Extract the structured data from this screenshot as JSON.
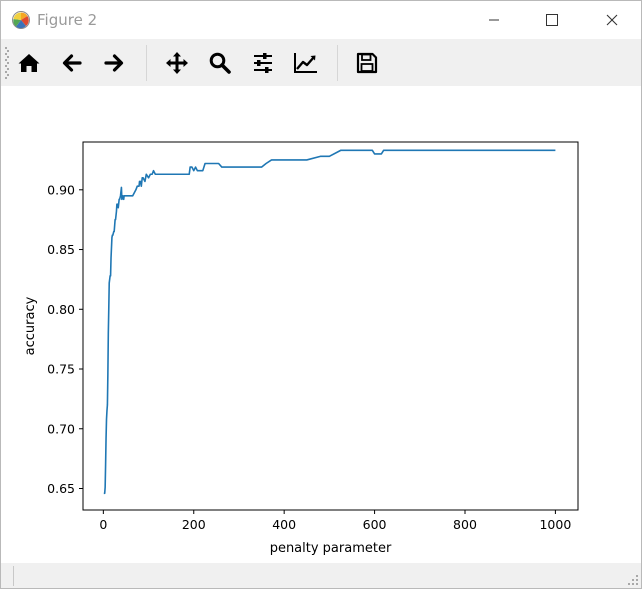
{
  "window": {
    "title": "Figure 2"
  },
  "toolbar": {
    "buttons": [
      {
        "name": "home-icon"
      },
      {
        "name": "back-arrow-icon"
      },
      {
        "name": "forward-arrow-icon"
      },
      {
        "name": "pan-icon"
      },
      {
        "name": "zoom-icon"
      },
      {
        "name": "configure-subplots-icon"
      },
      {
        "name": "edit-axis-icon"
      },
      {
        "name": "save-icon"
      }
    ]
  },
  "chart_data": {
    "type": "line",
    "title": "",
    "xlabel": "penalty parameter",
    "ylabel": "accuracy",
    "xlim": [
      -45,
      1050
    ],
    "ylim": [
      0.632,
      0.94
    ],
    "xticks": [
      0,
      200,
      400,
      600,
      800,
      1000
    ],
    "xtick_labels": [
      "0",
      "200",
      "400",
      "600",
      "800",
      "1000"
    ],
    "yticks": [
      0.65,
      0.7,
      0.75,
      0.8,
      0.85,
      0.9
    ],
    "ytick_labels": [
      "0.65",
      "0.70",
      "0.75",
      "0.80",
      "0.85",
      "0.90"
    ],
    "grid": false,
    "line_color": "#1f77b4",
    "series": [
      {
        "x": [
          1,
          2,
          3,
          4,
          5,
          6,
          7,
          8,
          9,
          10,
          11,
          12,
          13,
          15,
          16,
          17,
          19,
          20,
          21,
          23,
          24,
          26,
          27,
          29,
          30,
          31,
          33,
          35,
          36,
          38,
          40,
          41,
          43,
          45,
          46,
          48,
          50,
          52,
          55,
          58,
          60,
          65,
          72,
          75,
          79,
          80,
          82,
          84,
          86,
          88,
          92,
          95,
          100,
          104,
          108,
          111,
          115,
          120,
          140,
          160,
          178,
          190,
          192,
          196,
          200,
          204,
          208,
          220,
          225,
          240,
          255,
          262,
          280,
          300,
          350,
          360,
          372,
          400,
          450,
          480,
          500,
          525,
          560,
          595,
          600,
          610,
          615,
          620,
          640,
          700,
          800,
          900,
          1000
        ],
        "y": [
          0.646,
          0.646,
          0.646,
          0.651,
          0.67,
          0.692,
          0.708,
          0.715,
          0.72,
          0.745,
          0.78,
          0.8,
          0.822,
          0.828,
          0.828,
          0.843,
          0.86,
          0.862,
          0.862,
          0.865,
          0.865,
          0.875,
          0.875,
          0.882,
          0.888,
          0.888,
          0.885,
          0.892,
          0.892,
          0.895,
          0.902,
          0.892,
          0.895,
          0.892,
          0.895,
          0.895,
          0.895,
          0.895,
          0.895,
          0.895,
          0.895,
          0.895,
          0.9,
          0.903,
          0.903,
          0.907,
          0.907,
          0.903,
          0.91,
          0.91,
          0.907,
          0.913,
          0.91,
          0.913,
          0.913,
          0.916,
          0.913,
          0.913,
          0.913,
          0.913,
          0.913,
          0.913,
          0.919,
          0.919,
          0.916,
          0.919,
          0.916,
          0.916,
          0.922,
          0.922,
          0.922,
          0.919,
          0.919,
          0.919,
          0.919,
          0.922,
          0.925,
          0.925,
          0.925,
          0.928,
          0.928,
          0.933,
          0.933,
          0.933,
          0.93,
          0.93,
          0.93,
          0.933,
          0.933,
          0.933,
          0.933,
          0.933,
          0.933
        ]
      }
    ]
  }
}
